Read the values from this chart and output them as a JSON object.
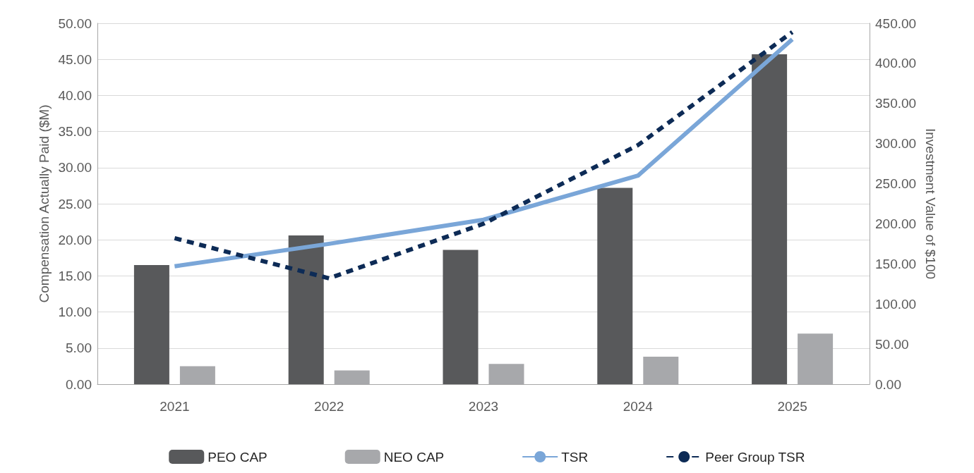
{
  "chart_data": {
    "type": "bar",
    "categories": [
      "2021",
      "2022",
      "2023",
      "2024",
      "2025"
    ],
    "ylabel": "Compensation Actually Paid ($M)",
    "y2label": "Investment Value of $100",
    "series": [
      {
        "name": "PEO CAP",
        "color": "#58595b",
        "values": [
          16.5,
          20.6,
          18.6,
          27.2,
          45.7
        ]
      },
      {
        "name": "NEO CAP",
        "color": "#a7a8ab",
        "values": [
          2.5,
          1.9,
          2.8,
          3.8,
          7.0
        ]
      },
      {
        "name": "TSR",
        "type": "line",
        "axis": "y2",
        "color": "#7aa6d8",
        "line_style": "solid",
        "values": [
          147,
          175,
          205,
          260,
          430
        ]
      },
      {
        "name": "Peer Group TSR",
        "type": "line",
        "axis": "y2",
        "color": "#0d2b56",
        "line_style": "dashed",
        "values": [
          182,
          132,
          200,
          298,
          439
        ]
      }
    ],
    "ylim": [
      0,
      50
    ],
    "yticks": [
      {
        "value": 0,
        "label": "0.00"
      },
      {
        "value": 5,
        "label": "5.00"
      },
      {
        "value": 10,
        "label": "10.00"
      },
      {
        "value": 15,
        "label": "15.00"
      },
      {
        "value": 20,
        "label": "20.00"
      },
      {
        "value": 25,
        "label": "25.00"
      },
      {
        "value": 30,
        "label": "30.00"
      },
      {
        "value": 35,
        "label": "35.00"
      },
      {
        "value": 40,
        "label": "40.00"
      },
      {
        "value": 45,
        "label": "45.00"
      },
      {
        "value": 50,
        "label": "50.00"
      }
    ],
    "y2lim": [
      0,
      450
    ],
    "y2ticks": [
      {
        "value": 0,
        "label": "0.00"
      },
      {
        "value": 50,
        "label": "50.00"
      },
      {
        "value": 100,
        "label": "100.00"
      },
      {
        "value": 150,
        "label": "150.00"
      },
      {
        "value": 200,
        "label": "200.00"
      },
      {
        "value": 250,
        "label": "250.00"
      },
      {
        "value": 300,
        "label": "300.00"
      },
      {
        "value": 350,
        "label": "350.00"
      },
      {
        "value": 400,
        "label": "400.00"
      },
      {
        "value": 450,
        "label": "450.00"
      }
    ],
    "grid": "y",
    "legend": "bottom",
    "marker": "none"
  }
}
